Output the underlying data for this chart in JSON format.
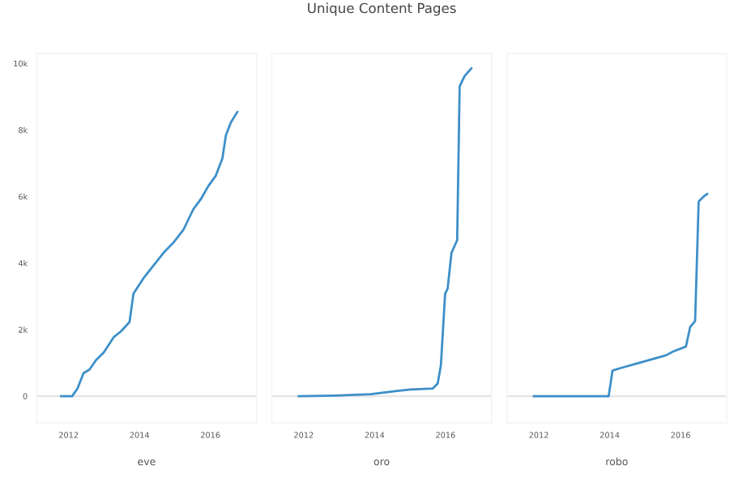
{
  "chart_data": [
    {
      "type": "line",
      "xlabel": "eve",
      "x": [
        2011.79,
        2012.1,
        2012.25,
        2012.42,
        2012.59,
        2012.77,
        2012.99,
        2013.27,
        2013.48,
        2013.72,
        2013.83,
        2014.11,
        2014.39,
        2014.68,
        2014.96,
        2015.24,
        2015.52,
        2015.73,
        2015.94,
        2016.15,
        2016.34,
        2016.44,
        2016.58,
        2016.76
      ],
      "series": [
        {
          "color": "#3d8fc9",
          "values": [
            0,
            0,
            230,
            690,
            800,
            1080,
            1310,
            1770,
            1950,
            2230,
            3080,
            3540,
            3920,
            4310,
            4620,
            5000,
            5620,
            5920,
            6310,
            6620,
            7150,
            7850,
            8230,
            8540
          ]
        }
      ],
      "xlim": [
        2011.1,
        2017.3
      ],
      "xticks": [
        2012,
        2014,
        2016
      ],
      "ylim": [
        -800,
        10300
      ],
      "yticks": [
        0,
        {
          "value": 2000,
          "label": "2k"
        },
        {
          "value": 4000,
          "label": "4k"
        },
        {
          "value": 6000,
          "label": "6k"
        },
        {
          "value": 8000,
          "label": "8k"
        },
        {
          "value": 10000,
          "label": "10k"
        }
      ],
      "ref_lines": [
        {
          "axis": "y",
          "value": 0,
          "color": "#e4e4e4"
        }
      ],
      "grid": false,
      "legend": false
    },
    {
      "type": "line",
      "title": "Unique Content Pages",
      "xlabel": "oro",
      "x": [
        2011.86,
        2012.91,
        2013.89,
        2014.59,
        2015.01,
        2015.64,
        2015.78,
        2015.87,
        2015.99,
        2016.06,
        2016.17,
        2016.33,
        2016.4,
        2016.54,
        2016.73
      ],
      "series": [
        {
          "color": "#3d8fc9",
          "values": [
            0,
            20,
            60,
            150,
            200,
            230,
            380,
            920,
            3080,
            3230,
            4310,
            4690,
            9310,
            9620,
            9850
          ]
        }
      ],
      "xlim": [
        2011.1,
        2017.3
      ],
      "xticks": [
        2012,
        2014,
        2016
      ],
      "ylim": [
        -800,
        10300
      ],
      "tick_labels": "x",
      "ref_lines": [
        {
          "axis": "y",
          "value": 0,
          "color": "#e4e4e4"
        }
      ],
      "grid": false,
      "legend": false
    },
    {
      "type": "line",
      "xlabel": "robo",
      "x": [
        2011.86,
        2013.97,
        2014.08,
        2014.32,
        2014.82,
        2015.59,
        2015.8,
        2016.15,
        2016.27,
        2016.41,
        2016.51,
        2016.65,
        2016.75
      ],
      "series": [
        {
          "color": "#3d8fc9",
          "values": [
            0,
            0,
            770,
            850,
            1000,
            1230,
            1350,
            1490,
            2080,
            2260,
            5850,
            6000,
            6080
          ]
        }
      ],
      "xlim": [
        2011.1,
        2017.3
      ],
      "xticks": [
        2012,
        2014,
        2016
      ],
      "ylim": [
        -800,
        10300
      ],
      "tick_labels": "x",
      "ref_lines": [
        {
          "axis": "y",
          "value": 0,
          "color": "#e4e4e4"
        }
      ],
      "grid": false,
      "legend": false
    }
  ]
}
